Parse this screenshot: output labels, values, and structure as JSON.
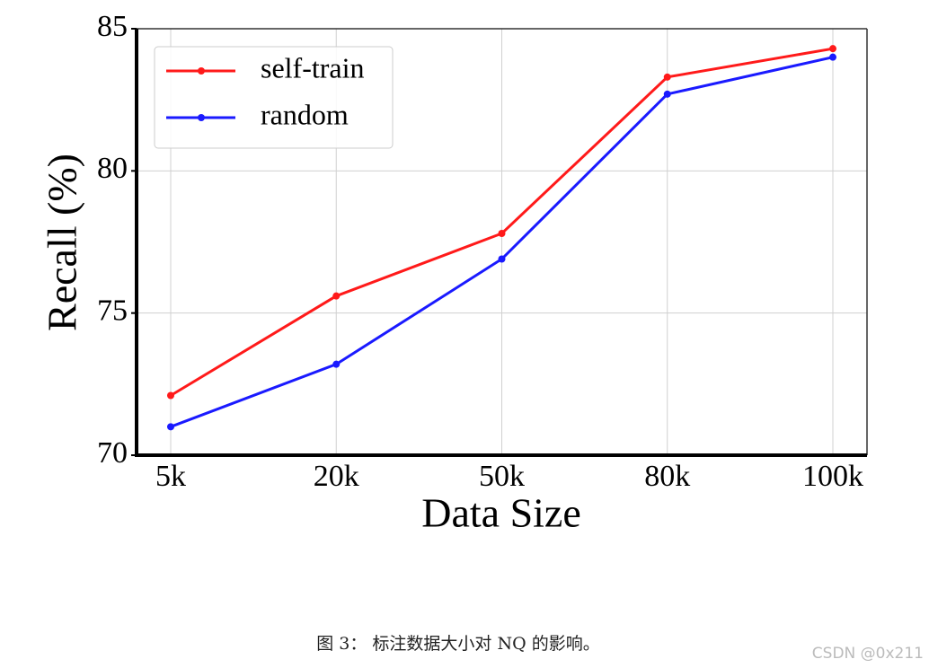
{
  "chart_data": {
    "type": "line",
    "xlabel": "Data Size",
    "ylabel": "Recall (%)",
    "categories": [
      "5k",
      "20k",
      "50k",
      "80k",
      "100k"
    ],
    "series": [
      {
        "name": "self-train",
        "color": "#ff1a1a",
        "values": [
          72.1,
          75.6,
          77.8,
          83.3,
          84.3
        ]
      },
      {
        "name": "random",
        "color": "#1a1aff",
        "values": [
          71.0,
          73.2,
          76.9,
          82.7,
          84.0
        ]
      }
    ],
    "ylim": [
      70,
      85
    ],
    "yticks": [
      70,
      75,
      80,
      85
    ],
    "grid": true,
    "legend": "upper left"
  },
  "caption": "图 3： 标注数据大小对 NQ 的影响。",
  "watermark": "CSDN @0x211"
}
